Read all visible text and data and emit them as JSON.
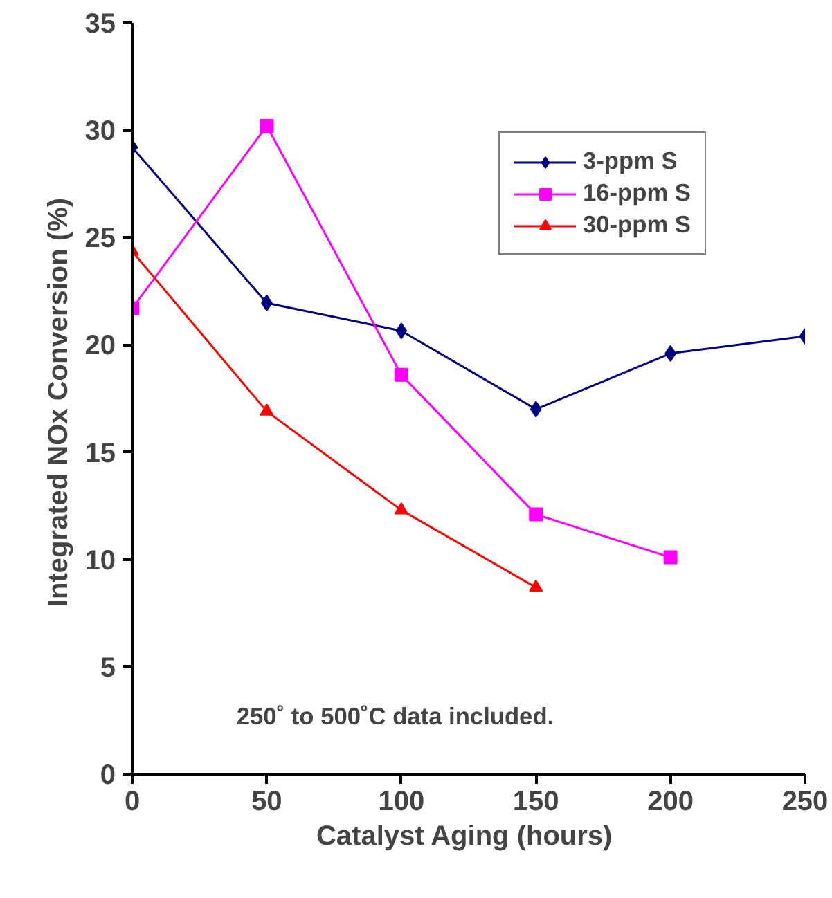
{
  "chart_data": {
    "type": "line",
    "xlabel": "Catalyst Aging  (hours)",
    "ylabel": "Integrated NOx Conversion  (%)",
    "x": [
      0,
      50,
      100,
      150,
      200,
      250
    ],
    "series": [
      {
        "name": "3-ppm S",
        "color": "#000080",
        "marker": "diamond",
        "values": [
          29.2,
          21.95,
          20.65,
          17.0,
          19.6,
          20.4
        ]
      },
      {
        "name": "16-ppm S",
        "color": "#ff00ff",
        "marker": "square",
        "values": [
          21.7,
          30.2,
          18.6,
          12.1,
          10.1,
          null
        ]
      },
      {
        "name": "30-ppm S",
        "color": "#ff0000",
        "marker": "triangle",
        "values": [
          24.35,
          16.9,
          12.3,
          8.7,
          null,
          null
        ]
      }
    ],
    "xlim": [
      0,
      250
    ],
    "xticks": [
      0,
      50,
      100,
      150,
      200,
      250
    ],
    "ylim": [
      0,
      35
    ],
    "yticks": [
      0,
      5,
      10,
      15,
      20,
      25,
      30,
      35
    ],
    "grid": false,
    "legend": "top right",
    "line_style": "solid",
    "annotations": [
      "250˚ to 500˚C data included."
    ]
  }
}
